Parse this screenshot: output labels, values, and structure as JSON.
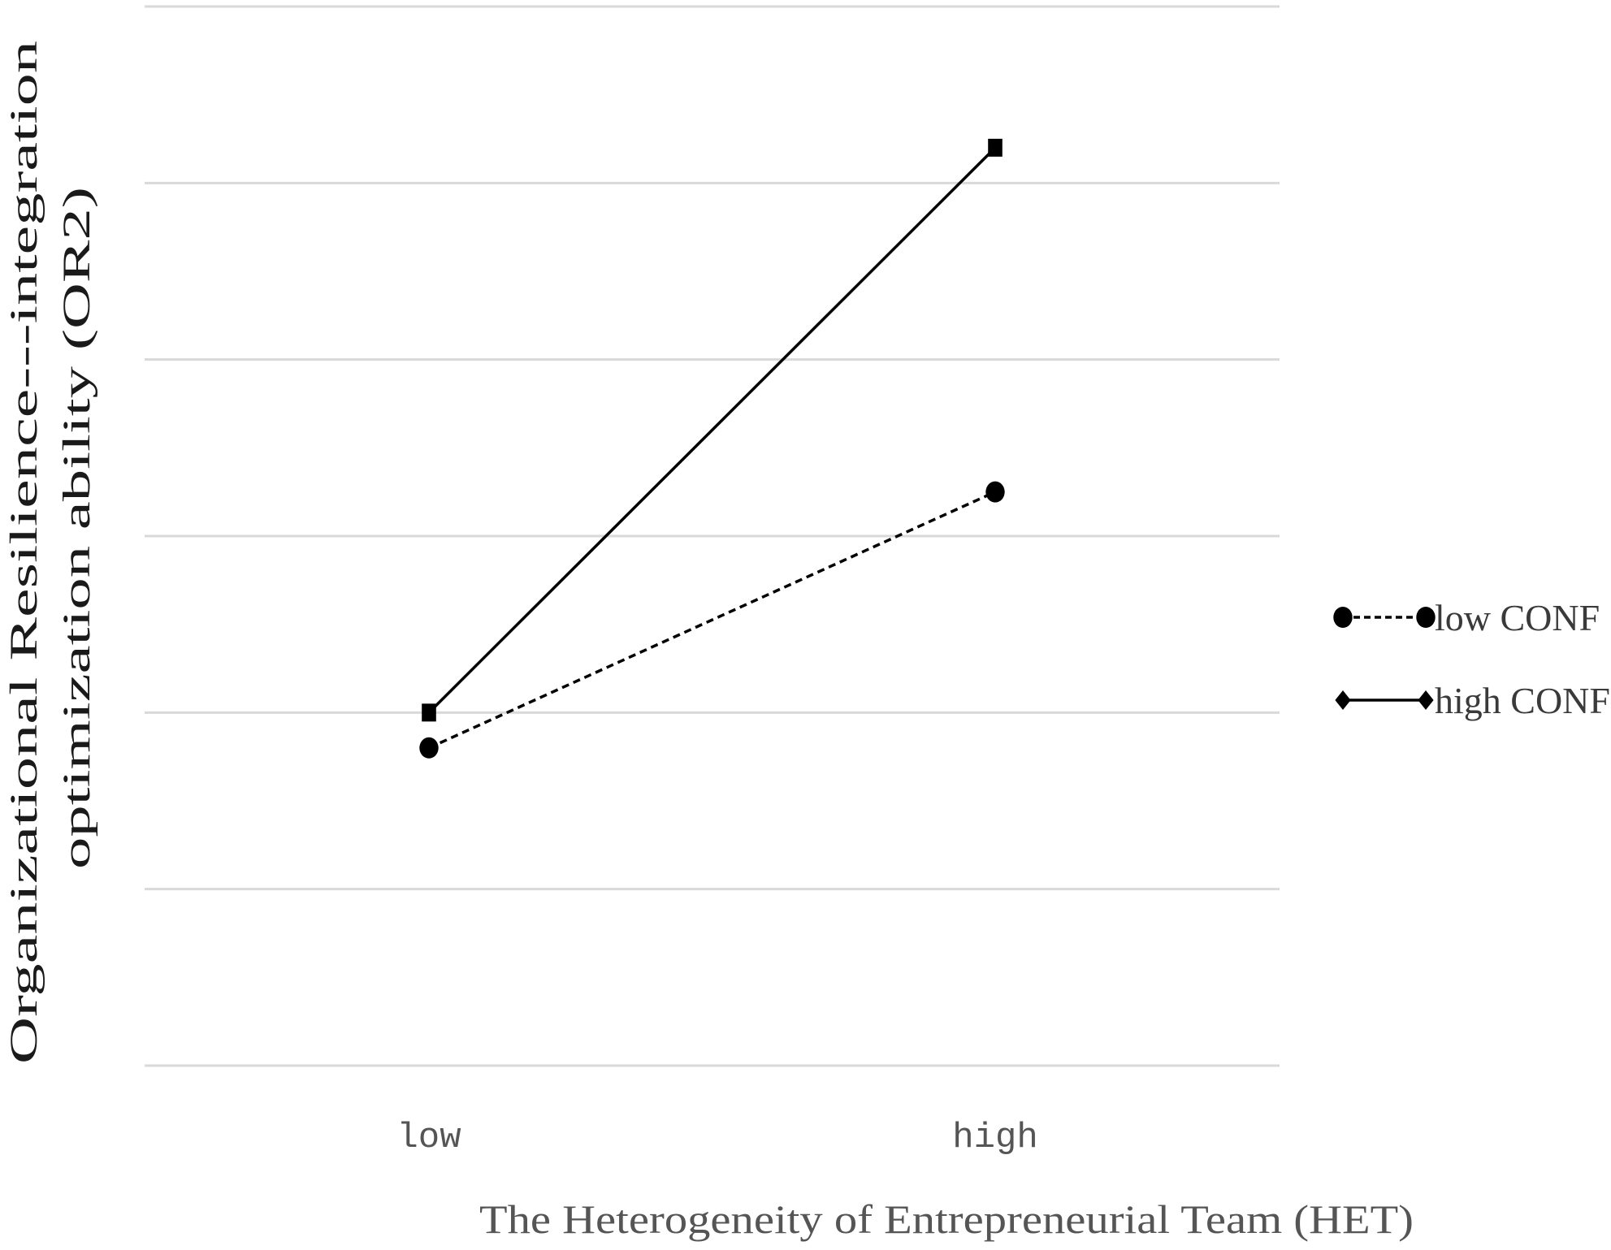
{
  "chart_data": {
    "type": "line",
    "categories": [
      "low",
      "high"
    ],
    "xlabel": "The Heterogeneity of Entrepreneurial Team (HET)",
    "ylabel_lines": [
      "Organizational Resilience---integration",
      "optimization ability (OR2)"
    ],
    "ylim": [
      0,
      6
    ],
    "gridlines": [
      0,
      1,
      2,
      3,
      4,
      5,
      6
    ],
    "grid": true,
    "y_tick_labels_shown": false,
    "legend_position": "right",
    "series": [
      {
        "name": "low CONF",
        "values": [
          1.8,
          3.25
        ],
        "line_style": "dashed",
        "marker": "circle",
        "color": "#000000"
      },
      {
        "name": "high CONF",
        "values": [
          2.0,
          5.2
        ],
        "line_style": "solid",
        "marker": "square",
        "color": "#000000"
      }
    ]
  },
  "colors": {
    "grid": "#d9d9d9",
    "line": "#000000",
    "tick_text": "#555555"
  }
}
